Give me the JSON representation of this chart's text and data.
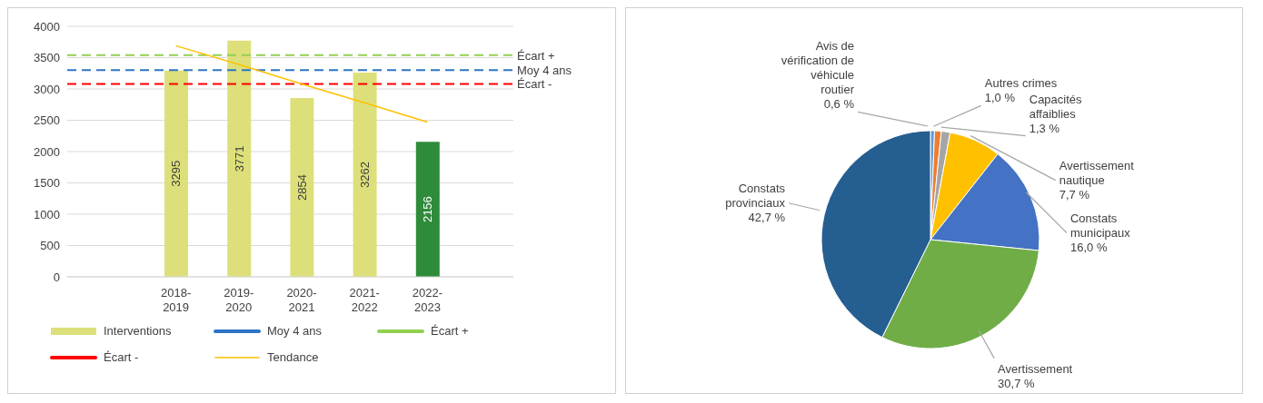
{
  "chart_data": [
    {
      "type": "bar",
      "categories": [
        "2018-2019",
        "2019-2020",
        "2020-2021",
        "2021-2022",
        "2022-2023"
      ],
      "series": [
        {
          "name": "Interventions",
          "type": "bar",
          "colors": [
            "#dde07a",
            "#dde07a",
            "#dde07a",
            "#dde07a",
            "#2e8b3a"
          ],
          "values": [
            3295,
            3771,
            2854,
            3262,
            2156
          ],
          "value_labels": [
            "3295",
            "3771",
            "2854",
            "3262",
            "2156"
          ]
        },
        {
          "name": "Tendance",
          "type": "line",
          "color": "#ffc000",
          "values": [
            3690,
            3390,
            3080,
            2780,
            2470
          ]
        }
      ],
      "ref_lines": [
        {
          "axis": "y",
          "value": 3300,
          "label": "Moy 4 ans",
          "color": "#2e75c6",
          "line_style": "dashed"
        },
        {
          "axis": "y",
          "value": 3540,
          "label": "Écart +",
          "color": "#92d050",
          "line_style": "dashed"
        },
        {
          "axis": "y",
          "value": 3080,
          "label": "Écart -",
          "color": "#ff0000",
          "line_style": "dashed"
        }
      ],
      "ylim": [
        0,
        4000
      ],
      "yticks": [
        0,
        500,
        1000,
        1500,
        2000,
        2500,
        3000,
        3500,
        4000
      ],
      "grid": "y",
      "legend": "bottom"
    },
    {
      "type": "pie",
      "categories": [
        "Avis de vérification de véhicule routier",
        "Autres crimes",
        "Capacités affaiblies",
        "Avertissement nautique",
        "Constats municipaux",
        "Avertissement",
        "Constats provinciaux"
      ],
      "values": [
        0.6,
        1.0,
        1.3,
        7.7,
        16.0,
        30.7,
        42.7
      ],
      "value_labels": [
        "0,6 %",
        "1,0 %",
        "1,3 %",
        "7,7 %",
        "16,0 %",
        "30,7 %",
        "42,7 %"
      ],
      "colors": [
        "#5b9bd5",
        "#ed7d31",
        "#a5a5a5",
        "#ffc000",
        "#4472c4",
        "#70ad47",
        "#255e91"
      ]
    }
  ]
}
